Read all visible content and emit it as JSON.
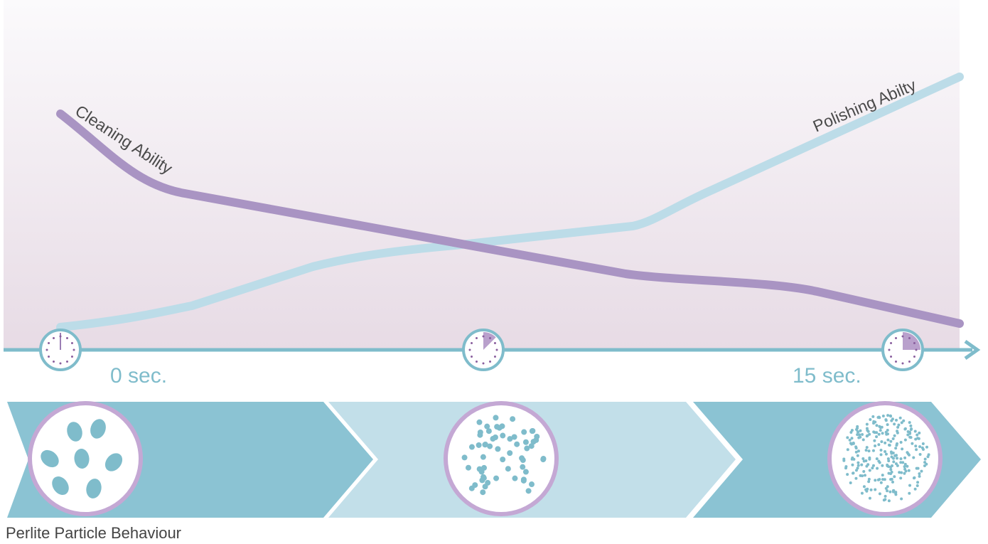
{
  "curves": [
    {
      "label": "Cleaning Ability"
    },
    {
      "label": "Polishing Abilty"
    }
  ],
  "timeline": {
    "labels": [
      "0 sec.",
      "15 sec."
    ]
  },
  "caption": "Perlite Particle Behaviour"
}
